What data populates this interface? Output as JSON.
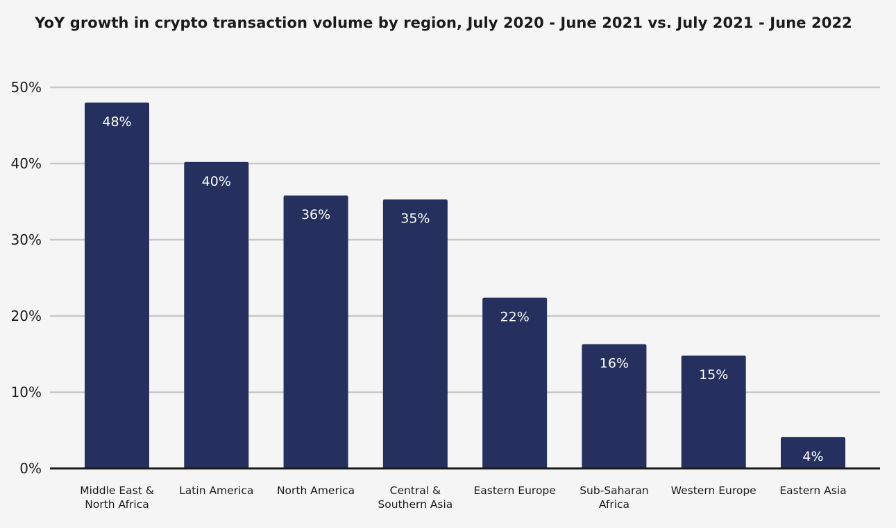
{
  "chart_data": {
    "type": "bar",
    "title": "YoY growth in crypto transaction volume by region, July 2020 - June 2021 vs. July 2021 - June 2022",
    "xlabel": "",
    "ylabel": "",
    "ylim": [
      0,
      50
    ],
    "yticks": [
      "0%",
      "10%",
      "20%",
      "30%",
      "40%",
      "50%"
    ],
    "ytick_values": [
      0,
      10,
      20,
      30,
      40,
      50
    ],
    "categories": [
      [
        "Middle East &",
        "North Africa"
      ],
      [
        "Latin America"
      ],
      [
        "North America"
      ],
      [
        "Central &",
        "Southern Asia"
      ],
      [
        "Eastern Europe"
      ],
      [
        "Sub-Saharan",
        "Africa"
      ],
      [
        "Western Europe"
      ],
      [
        "Eastern Asia"
      ]
    ],
    "values": [
      48,
      40.2,
      35.8,
      35.3,
      22.4,
      16.3,
      14.8,
      4.1
    ],
    "data_labels": [
      "48%",
      "40%",
      "36%",
      "35%",
      "22%",
      "16%",
      "15%",
      "4%"
    ],
    "grid": true,
    "legend": "none",
    "colors": {
      "bar": "#25305e",
      "grid": "#c8c8c8",
      "axis": "#1a1a1a",
      "background": "#f5f5f5"
    }
  }
}
